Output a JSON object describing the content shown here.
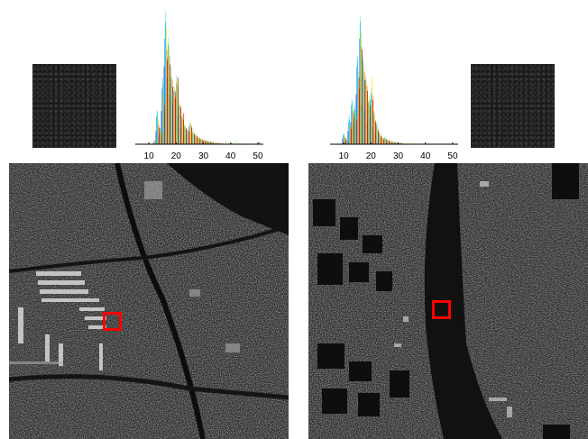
{
  "chart_data": [
    {
      "type": "bar",
      "x": [
        5,
        6,
        7,
        8,
        9,
        10,
        11,
        12,
        13,
        14,
        15,
        16,
        17,
        18,
        19,
        20,
        21,
        22,
        23,
        24,
        25,
        26,
        27,
        28,
        29,
        30,
        31,
        32,
        33,
        34,
        35,
        36,
        37,
        38,
        39,
        40,
        41,
        42,
        43,
        44,
        45,
        46,
        47,
        48,
        49,
        50,
        51
      ],
      "series": [
        {
          "color": "#0000b4",
          "values": [
            0,
            0,
            0,
            0,
            0,
            0,
            0,
            1,
            12,
            8,
            30,
            70,
            60,
            45,
            35,
            40,
            25,
            15,
            10,
            8,
            12,
            6,
            5,
            4,
            3,
            2,
            2,
            2,
            1,
            1,
            1,
            1,
            1,
            0,
            0,
            0,
            0,
            0,
            0,
            0,
            0,
            0,
            0,
            0,
            0,
            0,
            2
          ]
        },
        {
          "color": "#3c78ff",
          "values": [
            0,
            0,
            0,
            0,
            0,
            0,
            0,
            2,
            25,
            10,
            50,
            95,
            78,
            55,
            40,
            48,
            30,
            20,
            14,
            10,
            16,
            8,
            6,
            5,
            4,
            3,
            3,
            2,
            2,
            1,
            1,
            1,
            0,
            0,
            0,
            0,
            0,
            0,
            0,
            0,
            0,
            0,
            0,
            0,
            0,
            0,
            0
          ]
        },
        {
          "color": "#00c8ff",
          "values": [
            0,
            0,
            0,
            0,
            0,
            0,
            0,
            3,
            30,
            15,
            60,
            110,
            90,
            60,
            48,
            55,
            35,
            25,
            16,
            12,
            18,
            10,
            8,
            6,
            4,
            3,
            3,
            2,
            2,
            1,
            1,
            0,
            0,
            0,
            0,
            0,
            0,
            0,
            0,
            0,
            0,
            0,
            0,
            0,
            0,
            0,
            0
          ]
        },
        {
          "color": "#6ee6a0",
          "values": [
            0,
            0,
            0,
            0,
            0,
            0,
            0,
            4,
            28,
            14,
            55,
            120,
            96,
            70,
            52,
            62,
            38,
            26,
            18,
            14,
            20,
            12,
            9,
            7,
            5,
            4,
            3,
            3,
            2,
            2,
            1,
            1,
            1,
            3,
            1,
            1,
            1,
            3,
            1,
            1,
            1,
            0,
            0,
            0,
            0,
            0,
            0
          ]
        },
        {
          "color": "#ffd200",
          "values": [
            0,
            0,
            0,
            0,
            0,
            0,
            0,
            3,
            22,
            12,
            45,
            105,
            88,
            62,
            50,
            58,
            36,
            24,
            16,
            13,
            19,
            11,
            8,
            6,
            5,
            4,
            3,
            2,
            2,
            1,
            1,
            1,
            1,
            1,
            1,
            1,
            1,
            0,
            0,
            0,
            0,
            0,
            0,
            0,
            0,
            0,
            0
          ]
        },
        {
          "color": "#ff6400",
          "values": [
            0,
            0,
            0,
            0,
            0,
            0,
            0,
            2,
            18,
            10,
            40,
            85,
            80,
            58,
            46,
            52,
            32,
            22,
            15,
            12,
            17,
            10,
            7,
            6,
            4,
            3,
            3,
            2,
            2,
            1,
            1,
            1,
            0,
            0,
            0,
            1,
            0,
            0,
            0,
            0,
            0,
            0,
            0,
            0,
            0,
            0,
            0
          ]
        },
        {
          "color": "#c80000",
          "values": [
            0,
            0,
            0,
            0,
            0,
            0,
            0,
            1,
            15,
            9,
            35,
            75,
            72,
            52,
            42,
            60,
            34,
            28,
            14,
            11,
            15,
            9,
            7,
            5,
            4,
            3,
            2,
            2,
            1,
            1,
            1,
            0,
            0,
            0,
            0,
            0,
            0,
            0,
            0,
            0,
            0,
            0,
            0,
            0,
            0,
            0,
            0
          ]
        }
      ],
      "xticks": [
        "10",
        "20",
        "30",
        "40",
        "50"
      ],
      "xlim": [
        5,
        52
      ],
      "ylim": [
        0,
        125
      ]
    },
    {
      "type": "bar",
      "x": [
        5,
        6,
        7,
        8,
        9,
        10,
        11,
        12,
        13,
        14,
        15,
        16,
        17,
        18,
        19,
        20,
        21,
        22,
        23,
        24,
        25,
        26,
        27,
        28,
        29,
        30,
        31,
        32,
        33,
        34,
        35,
        36,
        37,
        38,
        39,
        40,
        41,
        42,
        43,
        44,
        45,
        46,
        47,
        48,
        49,
        50,
        51
      ],
      "series": [
        {
          "color": "#0000b4",
          "values": [
            0,
            0,
            0,
            0,
            0,
            5,
            2,
            12,
            20,
            18,
            45,
            60,
            35,
            30,
            20,
            25,
            15,
            10,
            5,
            3,
            3,
            2,
            2,
            1,
            1,
            1,
            0,
            0,
            0,
            0,
            0,
            0,
            0,
            0,
            0,
            0,
            0,
            0,
            0,
            0,
            0,
            0,
            0,
            0,
            0,
            0,
            0
          ]
        },
        {
          "color": "#3c78ff",
          "values": [
            0,
            0,
            0,
            0,
            0,
            8,
            3,
            20,
            35,
            30,
            70,
            95,
            60,
            50,
            32,
            40,
            24,
            15,
            8,
            5,
            5,
            3,
            3,
            2,
            2,
            1,
            1,
            0,
            0,
            0,
            0,
            0,
            0,
            0,
            0,
            0,
            0,
            0,
            0,
            0,
            0,
            0,
            0,
            0,
            0,
            0,
            0
          ]
        },
        {
          "color": "#00c8ff",
          "values": [
            0,
            0,
            0,
            0,
            0,
            10,
            4,
            25,
            40,
            35,
            80,
            110,
            75,
            58,
            38,
            46,
            28,
            18,
            10,
            6,
            6,
            4,
            3,
            2,
            2,
            1,
            1,
            0,
            0,
            0,
            0,
            0,
            0,
            0,
            0,
            0,
            0,
            0,
            0,
            0,
            0,
            0,
            0,
            0,
            0,
            0,
            0
          ]
        },
        {
          "color": "#6ee6a0",
          "values": [
            0,
            0,
            0,
            0,
            0,
            9,
            4,
            22,
            38,
            32,
            75,
            115,
            80,
            62,
            40,
            50,
            30,
            20,
            11,
            7,
            7,
            4,
            3,
            3,
            2,
            1,
            1,
            1,
            0,
            0,
            0,
            0,
            0,
            0,
            0,
            0,
            0,
            0,
            0,
            0,
            0,
            0,
            0,
            0,
            0,
            0,
            0
          ]
        },
        {
          "color": "#ffd200",
          "values": [
            0,
            0,
            0,
            0,
            0,
            7,
            3,
            18,
            32,
            28,
            65,
            100,
            70,
            55,
            42,
            60,
            26,
            16,
            9,
            6,
            6,
            4,
            3,
            2,
            2,
            1,
            1,
            1,
            1,
            1,
            1,
            1,
            0,
            0,
            0,
            0,
            0,
            0,
            0,
            0,
            0,
            0,
            0,
            0,
            0,
            0,
            0
          ]
        },
        {
          "color": "#ff6400",
          "values": [
            0,
            0,
            0,
            0,
            0,
            6,
            2,
            16,
            28,
            25,
            58,
            88,
            65,
            52,
            36,
            44,
            22,
            14,
            8,
            5,
            5,
            3,
            2,
            2,
            1,
            1,
            1,
            0,
            0,
            0,
            0,
            0,
            0,
            0,
            0,
            0,
            0,
            0,
            0,
            0,
            0,
            0,
            0,
            0,
            0,
            0,
            0
          ]
        },
        {
          "color": "#c80000",
          "values": [
            0,
            0,
            0,
            0,
            0,
            5,
            2,
            14,
            24,
            22,
            50,
            85,
            58,
            48,
            34,
            40,
            20,
            12,
            7,
            4,
            4,
            3,
            2,
            1,
            1,
            1,
            0,
            0,
            0,
            0,
            0,
            0,
            0,
            0,
            0,
            0,
            0,
            0,
            0,
            0,
            0,
            0,
            0,
            0,
            0,
            0,
            0
          ]
        }
      ],
      "xticks": [
        "10",
        "20",
        "30",
        "40",
        "50"
      ],
      "xlim": [
        5,
        52
      ],
      "ylim": [
        0,
        125
      ]
    }
  ],
  "colors": {
    "roi_box": "#ff0000",
    "patch": "#1b1b1b"
  }
}
